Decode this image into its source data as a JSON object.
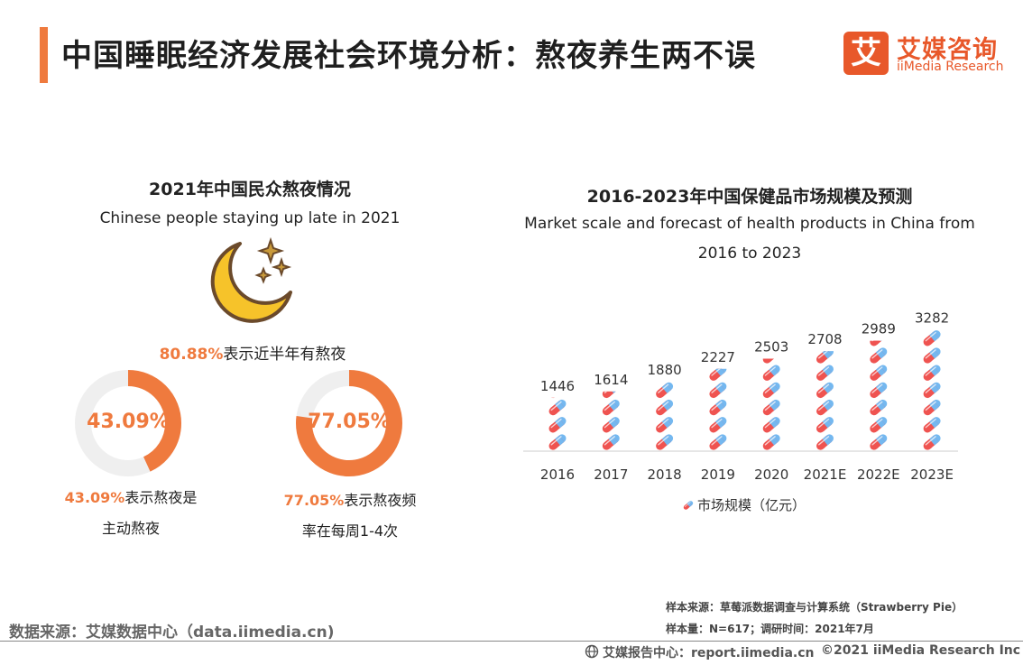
{
  "header": {
    "title": "中国睡眠经济发展社会环境分析：熬夜养生两不误",
    "logo_mark": "艾",
    "logo_cn": "艾媒咨询",
    "logo_en": "iiMedia Research"
  },
  "left_panel": {
    "title": "2021年中国民众熬夜情况",
    "subtitle": "Chinese people staying up late in 2021",
    "main_stat_value": "80.88%",
    "main_stat_text": "表示近半年有熬夜",
    "donuts": [
      {
        "value": 43.09,
        "label": "43.09%",
        "note_value": "43.09%",
        "note_text_1": "表示熬夜是",
        "note_text_2": "主动熬夜"
      },
      {
        "value": 77.05,
        "label": "77.05%",
        "note_value": "77.05%",
        "note_text_1": "表示熬夜频",
        "note_text_2": "率在每周1-4次"
      }
    ],
    "colors": {
      "accent": "#ef7a3e",
      "track": "#efefef",
      "moon": "#f6c32a",
      "moon_outline": "#6b4a2b"
    }
  },
  "right_panel": {
    "title": "2016-2023年中国保健品市场规模及预测",
    "subtitle_line1": "Market scale and forecast of health products in China from",
    "subtitle_line2": "2016 to 2023"
  },
  "chart_data": {
    "type": "bar",
    "categories": [
      "2016",
      "2017",
      "2018",
      "2019",
      "2020",
      "2021E",
      "2022E",
      "2023E"
    ],
    "series": [
      {
        "name": "市场规模（亿元）",
        "values": [
          1446,
          1614,
          1880,
          2227,
          2503,
          2708,
          2989,
          3282
        ]
      }
    ],
    "data_labels": [
      "1446",
      "1614",
      "1880",
      "2227",
      "2503",
      "2708",
      "2989",
      "3282"
    ],
    "legend_position": "bottom",
    "grid": false,
    "mark_style": "pill-capsule-icons",
    "colors": {
      "capsule_red": "#ef5350",
      "capsule_blue": "#74b8f0",
      "axis": "#cccccc"
    }
  },
  "footer": {
    "data_source": "数据来源：艾媒数据中心（data.iimedia.cn)",
    "sample_source": "样本来源：草莓派数据调查与计算系统（Strawberry Pie）",
    "sample_size": "样本量：N=617；调研时间：2021年7月",
    "report_center": "艾媒报告中心：report.iimedia.cn",
    "copyright": "©2021  iiMedia Research  Inc"
  }
}
